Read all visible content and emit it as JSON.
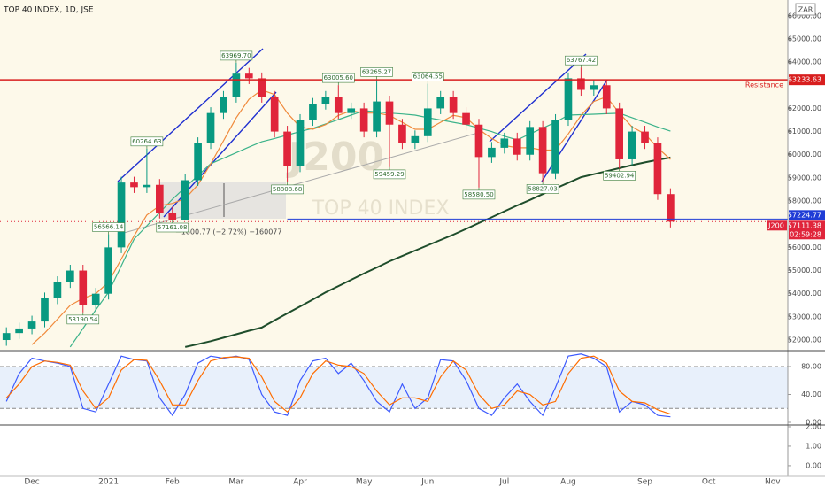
{
  "chart_data": [
    {
      "type": "candlestick",
      "title": "TOP 40 INDEX, 1D, JSE",
      "symbol": "J200",
      "description": "TOP 40 INDEX",
      "currency": "ZAR",
      "measure_label": "−1600.77 (−2.72%) −160077",
      "countdown": "02:59:28",
      "up_color": "#089981",
      "down_color": "#e0253b",
      "categories": [
        null,
        null,
        "Dec",
        null,
        null,
        null,
        null,
        null,
        "2021",
        null,
        null,
        null,
        null,
        "Feb",
        null,
        null,
        null,
        null,
        "Mar",
        null,
        null,
        null,
        null,
        "Apr",
        null,
        null,
        null,
        null,
        "May",
        null,
        null,
        null,
        null,
        "Jun",
        null,
        null,
        null,
        null,
        null,
        "Jul",
        null,
        null,
        null,
        null,
        "Aug",
        null,
        null,
        null,
        null,
        null,
        "Sep",
        null,
        null,
        null,
        null,
        "Oct",
        null,
        null,
        null,
        null,
        "Nov"
      ],
      "open": [
        52000,
        52300,
        52500,
        52800,
        53800,
        54500,
        55000,
        53500,
        54000,
        56000,
        58800,
        58600,
        58700,
        57500,
        57200,
        58900,
        60500,
        61800,
        62500,
        63500,
        63300,
        62500,
        61000,
        59500,
        61500,
        62200,
        62500,
        61800,
        62000,
        61000,
        62300,
        61300,
        60500,
        60800,
        62000,
        62500,
        61800,
        61300,
        59900,
        60300,
        60700,
        60000,
        61200,
        59200,
        61500,
        63300,
        62800,
        63000,
        62000,
        59800,
        61000,
        60500,
        58300,
        null,
        null,
        null,
        null,
        null,
        null,
        null,
        null
      ],
      "high": [
        52550,
        52750,
        53050,
        54050,
        54750,
        55250,
        55250,
        54250,
        56566.14,
        59050,
        59050,
        60264.63,
        58950,
        57750,
        59150,
        60750,
        62050,
        62750,
        63969.7,
        63750,
        63550,
        62750,
        61250,
        61750,
        62450,
        62750,
        63005.6,
        62250,
        62250,
        63265.27,
        62550,
        61550,
        61050,
        63064.55,
        62750,
        62750,
        62050,
        61550,
        60550,
        60950,
        60950,
        61450,
        61450,
        61750,
        63550,
        63767.42,
        63250,
        63250,
        62250,
        61250,
        61250,
        60750,
        58550,
        null,
        null,
        null,
        null,
        null,
        null,
        null,
        null
      ],
      "low": [
        51750,
        52050,
        52250,
        52550,
        53550,
        54250,
        53190.54,
        53250,
        53750,
        55750,
        58350,
        58350,
        57250,
        57161.08,
        57200,
        58650,
        60250,
        61550,
        62250,
        63050,
        62250,
        60750,
        58808.68,
        59250,
        61250,
        61950,
        61550,
        61550,
        60750,
        60750,
        59459.29,
        60250,
        60250,
        60550,
        61750,
        61550,
        61050,
        58580.5,
        59650,
        60050,
        59750,
        59750,
        58827.03,
        58950,
        61250,
        62550,
        62550,
        61750,
        59402.94,
        59550,
        60250,
        58050,
        56861,
        null,
        null,
        null,
        null,
        null,
        null,
        null,
        null
      ],
      "close": [
        52300,
        52500,
        52800,
        53800,
        54500,
        55000,
        53500,
        54000,
        56000,
        58800,
        58600,
        58700,
        57500,
        57200,
        58900,
        60500,
        61800,
        62500,
        63500,
        63300,
        62500,
        61000,
        59500,
        61500,
        62200,
        62500,
        61800,
        62000,
        61000,
        62300,
        61300,
        60500,
        60800,
        62000,
        62500,
        61800,
        61300,
        59900,
        60300,
        60700,
        60000,
        61200,
        59200,
        61500,
        63300,
        62800,
        63000,
        62000,
        59800,
        61000,
        60500,
        58300,
        57111.38,
        null,
        null,
        null,
        null,
        null,
        null,
        null,
        null
      ],
      "series": [
        {
          "color": "#1e4d2b",
          "values": [
            null,
            null,
            null,
            null,
            null,
            null,
            null,
            null,
            null,
            null,
            null,
            null,
            null,
            null,
            51700,
            51820,
            51950,
            52100,
            52250,
            52400,
            52540,
            52850,
            53150,
            53450,
            53750,
            54060,
            54330,
            54600,
            54870,
            55130,
            55400,
            55630,
            55860,
            56090,
            56320,
            56550,
            56800,
            57050,
            57300,
            57560,
            57810,
            58050,
            58300,
            58540,
            58790,
            59030,
            59160,
            59290,
            59420,
            59550,
            59670,
            59780,
            59880,
            null,
            null,
            null,
            null,
            null,
            null,
            null,
            null
          ]
        },
        {
          "color": "#3cb38a",
          "values": [
            null,
            null,
            null,
            null,
            null,
            51700,
            52500,
            53300,
            54060,
            55200,
            56360,
            56930,
            57500,
            58080,
            58590,
            59100,
            59610,
            59850,
            60090,
            60330,
            60560,
            60700,
            60850,
            61000,
            61140,
            61330,
            61520,
            61710,
            61900,
            61850,
            61800,
            61760,
            61710,
            61600,
            61500,
            61400,
            61300,
            61150,
            61000,
            60800,
            60640,
            60900,
            61150,
            61400,
            61710,
            61730,
            61750,
            61770,
            61790,
            61600,
            61400,
            61200,
            61020,
            null,
            null,
            null,
            null,
            null,
            null,
            null,
            null
          ]
        },
        {
          "color": "#f08a3c",
          "values": [
            null,
            null,
            51800,
            52300,
            52900,
            53500,
            53800,
            54000,
            54500,
            55500,
            56500,
            57400,
            57800,
            57900,
            58100,
            58700,
            59600,
            60600,
            61600,
            62400,
            62800,
            62600,
            61800,
            61200,
            61100,
            61300,
            61700,
            61900,
            61800,
            61800,
            61700,
            61400,
            61100,
            61100,
            61400,
            61700,
            61600,
            61100,
            60700,
            60400,
            60300,
            60300,
            60200,
            60200,
            60900,
            61700,
            62300,
            62500,
            61800,
            61200,
            60900,
            60300,
            59800,
            null,
            null,
            null,
            null,
            null,
            null,
            null,
            null
          ]
        }
      ],
      "annotations": [
        {
          "label": "56566.14",
          "value": 56566.14,
          "x": 8,
          "side": "above"
        },
        {
          "label": "53190.54",
          "value": 53190.54,
          "x": 6,
          "side": "below"
        },
        {
          "label": "60264.63",
          "value": 60264.63,
          "x": 11,
          "side": "above"
        },
        {
          "label": "57161.08",
          "value": 57161.08,
          "x": 13,
          "side": "below"
        },
        {
          "label": "63969.70",
          "value": 63969.7,
          "x": 18,
          "side": "above"
        },
        {
          "label": "58808.68",
          "value": 58808.68,
          "x": 22,
          "side": "below"
        },
        {
          "label": "63005.60",
          "value": 63005.6,
          "x": 26,
          "side": "above"
        },
        {
          "label": "63265.27",
          "value": 63265.27,
          "x": 29,
          "side": "above"
        },
        {
          "label": "59459.29",
          "value": 59459.29,
          "x": 30,
          "side": "below"
        },
        {
          "label": "63064.55",
          "value": 63064.55,
          "x": 33,
          "side": "above"
        },
        {
          "label": "58580.50",
          "value": 58580.5,
          "x": 37,
          "side": "below"
        },
        {
          "label": "58827.03",
          "value": 58827.03,
          "x": 42,
          "side": "below"
        },
        {
          "label": "63767.42",
          "value": 63767.42,
          "x": 45,
          "side": "above"
        },
        {
          "label": "59402.94",
          "value": 59402.94,
          "x": 48,
          "side": "below"
        }
      ],
      "resistance": {
        "name": "Resistance",
        "value": 63233.63,
        "value_label": "63233.63",
        "color": "#d81e1e"
      },
      "support": {
        "value": 57224.77,
        "value_label": "57224.77",
        "color": "#1f3cd6",
        "from": 22
      },
      "last": {
        "value": 57111.38,
        "value_label": "57111.38",
        "color": "#e0253b"
      },
      "ylim": [
        51580,
        66680
      ],
      "yticks": [
        {
          "value": 52000,
          "label": "52000.00"
        },
        {
          "value": 53000,
          "label": "53000.00"
        },
        {
          "value": 54000,
          "label": "54000.00"
        },
        {
          "value": 55000,
          "label": "55000.00"
        },
        {
          "value": 56000,
          "label": "56000.00"
        },
        {
          "value": 58000,
          "label": "58000.00"
        },
        {
          "value": 59000,
          "label": "59000.00"
        },
        {
          "value": 60000,
          "label": "60000.00"
        },
        {
          "value": 61000,
          "label": "61000.00"
        },
        {
          "value": 62000,
          "label": "62000.00"
        },
        {
          "value": 64000,
          "label": "64000.00"
        },
        {
          "value": 65000,
          "label": "65000.00"
        },
        {
          "value": 66000,
          "label": "66000.00"
        }
      ]
    },
    {
      "type": "line",
      "series": [
        {
          "color": "#3d5afe",
          "values": [
            30,
            70,
            92,
            88,
            85,
            80,
            20,
            15,
            55,
            95,
            90,
            88,
            35,
            10,
            40,
            85,
            95,
            92,
            95,
            90,
            40,
            15,
            10,
            60,
            88,
            92,
            70,
            85,
            60,
            30,
            15,
            55,
            20,
            35,
            90,
            88,
            60,
            20,
            10,
            35,
            55,
            30,
            10,
            50,
            95,
            98,
            92,
            80,
            15,
            30,
            25,
            10,
            8,
            null,
            null,
            null,
            null,
            null,
            null,
            null,
            null
          ]
        },
        {
          "color": "#ff6d00",
          "values": [
            35,
            55,
            80,
            88,
            86,
            82,
            45,
            20,
            35,
            75,
            90,
            89,
            60,
            25,
            25,
            60,
            88,
            93,
            94,
            92,
            65,
            30,
            15,
            35,
            70,
            88,
            82,
            80,
            70,
            45,
            25,
            35,
            35,
            30,
            65,
            88,
            75,
            40,
            20,
            25,
            45,
            40,
            25,
            30,
            70,
            92,
            95,
            85,
            45,
            30,
            28,
            18,
            12,
            null,
            null,
            null,
            null,
            null,
            null,
            null,
            null
          ]
        }
      ],
      "bands": [
        20,
        80
      ],
      "ylim": [
        -3.8,
        101.6
      ],
      "yticks": [
        {
          "value": 80,
          "label": "80.00"
        },
        {
          "value": 40,
          "label": "40.00"
        },
        {
          "value": 0,
          "label": "0.00"
        }
      ]
    },
    {
      "type": "line",
      "series": [],
      "ylim": [
        -0.55,
        2.09
      ],
      "yticks": [
        {
          "value": 2,
          "label": "2.00"
        },
        {
          "value": 1,
          "label": "1.00"
        },
        {
          "value": 0,
          "label": "0.00"
        }
      ]
    }
  ]
}
